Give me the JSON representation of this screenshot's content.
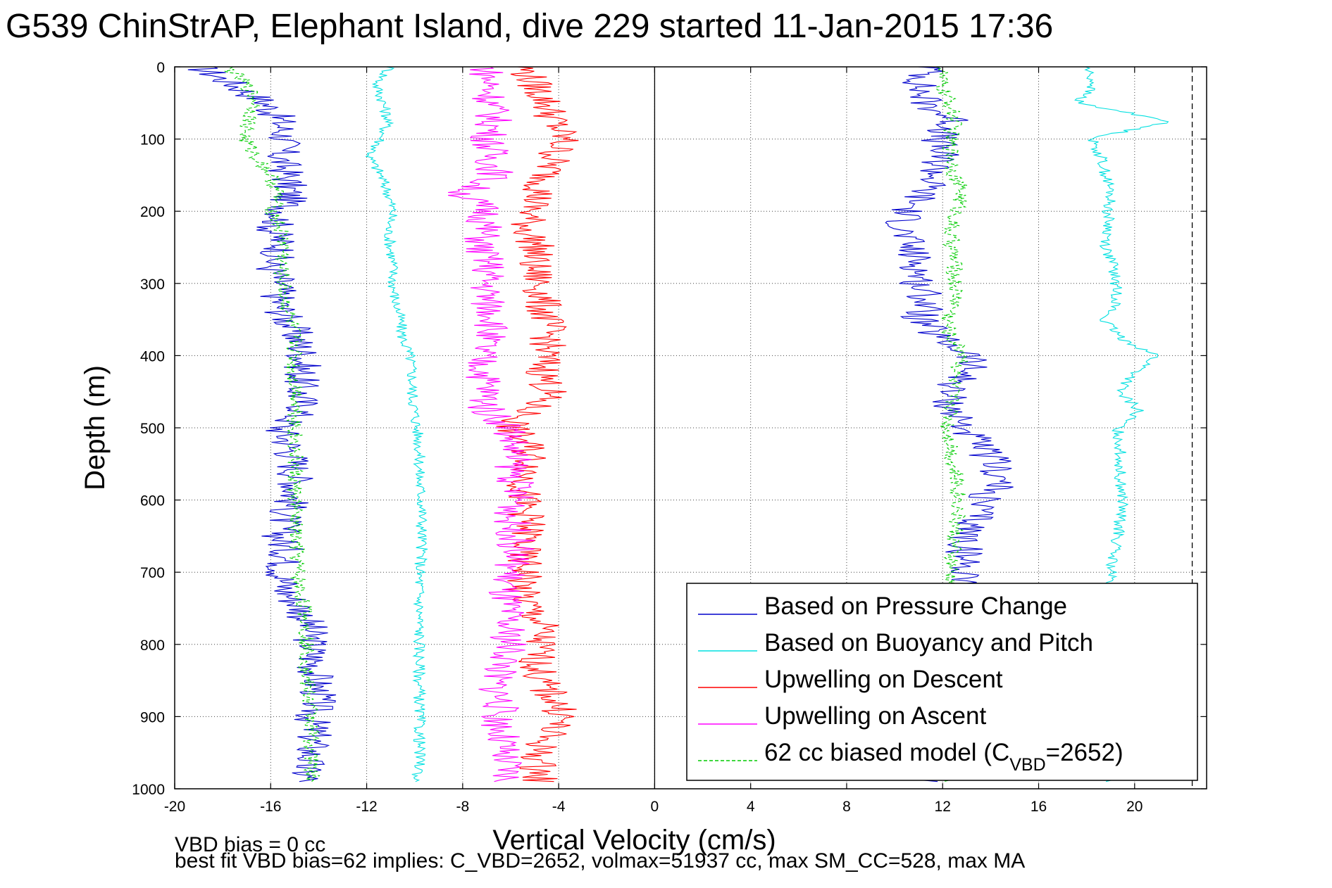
{
  "chart_data": {
    "type": "line",
    "title": "G539 ChinStrAP, Elephant Island, dive 229 started 11-Jan-2015 17:36",
    "xlabel": "Vertical Velocity (cm/s)",
    "ylabel": "Depth (m)",
    "xlim": [
      -20,
      23
    ],
    "ylim": [
      1000,
      0
    ],
    "y_reversed": true,
    "x_ticks": [
      "-20",
      "-16",
      "-12",
      "-8",
      "-4",
      "0",
      "4",
      "8",
      "12",
      "16",
      "20"
    ],
    "y_ticks": [
      "0",
      "100",
      "200",
      "300",
      "400",
      "500",
      "600",
      "700",
      "800",
      "900",
      "1000"
    ],
    "grid": true,
    "legend_position": "bottom-right",
    "reference_lines": [
      {
        "x": 0,
        "style": "solid",
        "color": "#000000"
      },
      {
        "x": 22.4,
        "style": "dashed",
        "color": "#000000"
      }
    ],
    "series": [
      {
        "name": "Based on Pressure Change",
        "color": "#0000cc",
        "style": "solid",
        "depth": [
          0,
          25,
          50,
          75,
          100,
          125,
          150,
          175,
          200,
          225,
          250,
          275,
          300,
          325,
          350,
          375,
          400,
          425,
          450,
          475,
          500,
          525,
          550,
          575,
          600,
          625,
          650,
          675,
          700,
          725,
          750,
          775,
          800,
          825,
          850,
          875,
          900,
          925,
          950,
          975,
          990
        ],
        "descent": [
          -19,
          -17.5,
          -16.2,
          -15.6,
          -15.4,
          -15.6,
          -15.3,
          -15.2,
          -15.4,
          -15.9,
          -15.5,
          -16.0,
          -15.6,
          -15.7,
          -15.3,
          -14.9,
          -14.6,
          -14.7,
          -14.8,
          -14.6,
          -15.6,
          -15.2,
          -15.0,
          -14.9,
          -15.1,
          -15.4,
          -15.6,
          -15.3,
          -15.5,
          -15.4,
          -14.7,
          -14.4,
          -14.3,
          -14.2,
          -14.1,
          -14.0,
          -14.3,
          -14.2,
          -14.3,
          -14.6,
          -14.4
        ],
        "ascent": [
          11.5,
          11.0,
          11.3,
          12.5,
          11.8,
          11.9,
          11.7,
          11.2,
          10.5,
          10.3,
          10.6,
          11.0,
          11.0,
          11.4,
          11.0,
          11.8,
          13.2,
          13.0,
          12.2,
          12.4,
          12.9,
          13.5,
          14.2,
          14.4,
          13.6,
          13.4,
          13.0,
          12.9,
          13.0,
          13.4,
          13.3,
          13.2,
          13.0,
          12.9,
          12.8,
          12.8,
          12.7,
          12.6,
          12.2,
          12.0,
          11.0
        ]
      },
      {
        "name": "Based on Buoyancy and Pitch",
        "color": "#00e0e0",
        "style": "solid",
        "depth": [
          0,
          25,
          50,
          75,
          100,
          125,
          150,
          175,
          200,
          225,
          250,
          275,
          300,
          325,
          350,
          375,
          400,
          425,
          450,
          475,
          500,
          525,
          550,
          575,
          600,
          625,
          650,
          675,
          700,
          725,
          750,
          775,
          800,
          825,
          850,
          875,
          900,
          925,
          950,
          975,
          990
        ],
        "descent": [
          -11.0,
          -11.6,
          -11.3,
          -11.1,
          -11.4,
          -11.9,
          -11.4,
          -11.1,
          -10.9,
          -11.1,
          -11.0,
          -10.9,
          -10.9,
          -10.8,
          -10.6,
          -10.5,
          -10.2,
          -10.1,
          -10.1,
          -10.0,
          -9.9,
          -9.8,
          -9.8,
          -9.8,
          -9.7,
          -9.7,
          -9.7,
          -9.7,
          -9.8,
          -9.8,
          -9.8,
          -9.8,
          -9.8,
          -9.8,
          -9.8,
          -9.8,
          -9.8,
          -9.8,
          -9.8,
          -9.8,
          -10.0
        ],
        "ascent": [
          18.0,
          18.3,
          17.6,
          21.5,
          18.2,
          18.6,
          18.8,
          19.0,
          18.9,
          18.9,
          18.8,
          19.1,
          19.2,
          19.3,
          18.7,
          19.4,
          20.9,
          20.0,
          19.3,
          20.2,
          19.3,
          19.4,
          19.4,
          19.4,
          19.5,
          19.4,
          19.3,
          19.1,
          19.0,
          18.9,
          18.9,
          18.9,
          18.9,
          18.9,
          18.9,
          18.9,
          18.9,
          18.9,
          18.9,
          18.9,
          18.9
        ]
      },
      {
        "name": "Upwelling on Descent",
        "color": "#ff0000",
        "style": "solid",
        "depth": [
          0,
          25,
          50,
          75,
          100,
          125,
          150,
          175,
          200,
          225,
          250,
          275,
          300,
          325,
          350,
          375,
          400,
          425,
          450,
          475,
          500,
          525,
          550,
          575,
          600,
          625,
          650,
          675,
          700,
          725,
          750,
          775,
          800,
          825,
          850,
          875,
          900,
          925,
          950,
          975,
          990
        ],
        "values": [
          -5.5,
          -5.0,
          -4.5,
          -4.2,
          -3.8,
          -4.2,
          -4.5,
          -4.8,
          -5.2,
          -5.3,
          -4.9,
          -5.1,
          -4.8,
          -4.7,
          -4.5,
          -4.4,
          -4.6,
          -4.6,
          -4.4,
          -5.2,
          -6.0,
          -5.3,
          -5.1,
          -5.4,
          -5.5,
          -5.3,
          -5.3,
          -5.6,
          -5.3,
          -5.6,
          -5.2,
          -4.7,
          -4.8,
          -4.9,
          -4.8,
          -4.2,
          -3.8,
          -4.5,
          -4.9,
          -4.8,
          -4.8
        ]
      },
      {
        "name": "Upwelling on Ascent",
        "color": "#ff00ff",
        "style": "solid",
        "depth": [
          0,
          25,
          50,
          75,
          100,
          125,
          150,
          175,
          200,
          225,
          250,
          275,
          300,
          325,
          350,
          375,
          400,
          425,
          450,
          475,
          500,
          525,
          550,
          575,
          600,
          625,
          650,
          675,
          700,
          725,
          750,
          775,
          800,
          825,
          850,
          875,
          900,
          925,
          950,
          975,
          990
        ],
        "values": [
          -7.0,
          -6.9,
          -6.8,
          -6.7,
          -6.9,
          -6.8,
          -6.6,
          -8.0,
          -7.0,
          -7.1,
          -7.3,
          -6.9,
          -7.0,
          -7.0,
          -6.6,
          -7.0,
          -7.3,
          -7.1,
          -7.0,
          -7.0,
          -6.0,
          -5.9,
          -5.9,
          -5.8,
          -5.7,
          -6.0,
          -5.8,
          -5.8,
          -6.0,
          -6.3,
          -6.2,
          -6.2,
          -6.0,
          -6.2,
          -6.7,
          -6.4,
          -6.5,
          -6.4,
          -6.4,
          -6.2,
          -6.2
        ]
      },
      {
        "name": "62 cc biased model (C",
        "name_subscript": "VBD",
        "name_suffix": "=2652)",
        "color": "#00cc00",
        "style": "dashed",
        "depth": [
          0,
          25,
          50,
          75,
          100,
          125,
          150,
          175,
          200,
          225,
          250,
          275,
          300,
          325,
          350,
          375,
          400,
          425,
          450,
          475,
          500,
          525,
          550,
          575,
          600,
          625,
          650,
          675,
          700,
          725,
          750,
          775,
          800,
          825,
          850,
          875,
          900,
          925,
          950,
          975,
          990
        ],
        "descent": [
          -17.8,
          -17.0,
          -16.6,
          -16.9,
          -17.1,
          -16.6,
          -16.0,
          -15.7,
          -15.9,
          -15.6,
          -15.4,
          -15.6,
          -15.5,
          -15.4,
          -15.2,
          -15.0,
          -15.0,
          -15.1,
          -14.9,
          -14.9,
          -15.0,
          -15.0,
          -15.0,
          -15.0,
          -15.0,
          -15.0,
          -15.0,
          -14.9,
          -14.9,
          -14.8,
          -14.6,
          -14.5,
          -14.5,
          -14.5,
          -14.5,
          -14.4,
          -14.3,
          -14.3,
          -14.3,
          -14.3,
          -14.3
        ],
        "ascent": [
          12.0,
          11.9,
          12.3,
          12.5,
          12.3,
          12.4,
          12.5,
          12.8,
          12.6,
          12.3,
          12.4,
          12.5,
          12.5,
          12.6,
          12.2,
          12.3,
          13.0,
          12.5,
          12.4,
          12.4,
          12.2,
          12.4,
          12.4,
          12.6,
          12.7,
          12.6,
          12.5,
          12.4,
          12.3,
          12.4,
          12.5,
          12.5,
          12.5,
          12.5,
          12.5,
          12.5,
          12.5,
          12.6,
          12.3,
          12.3,
          12.2
        ]
      }
    ],
    "notes": [
      "VBD bias = 0 cc",
      "best fit VBD bias=62 implies: C_VBD=2652, volmax=51937 cc, max SM_CC=528, max MA"
    ]
  }
}
